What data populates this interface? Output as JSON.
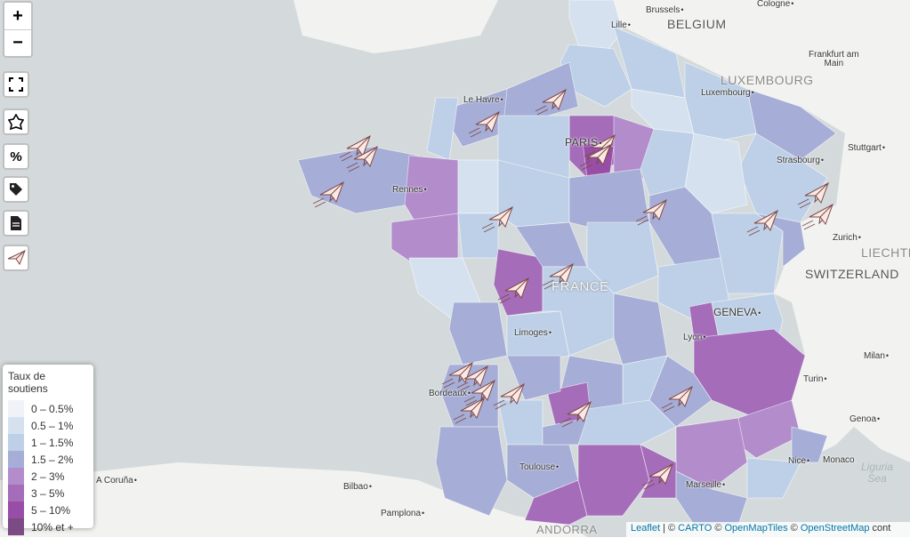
{
  "controls": {
    "zoom_in": "+",
    "zoom_out": "−",
    "percent": "%"
  },
  "legend": {
    "title": "Taux de soutiens",
    "items": [
      {
        "label": "0 – 0.5%",
        "color": "#eff3f8"
      },
      {
        "label": "0.5 – 1%",
        "color": "#d6e1ef"
      },
      {
        "label": "1 – 1.5%",
        "color": "#bdd0e7"
      },
      {
        "label": "1.5 – 2%",
        "color": "#a6add6"
      },
      {
        "label": "2 – 3%",
        "color": "#b28ccb"
      },
      {
        "label": "3 – 5%",
        "color": "#a46cb9"
      },
      {
        "label": "5 – 10%",
        "color": "#984ea6"
      },
      {
        "label": "10% et +",
        "color": "#7c4a85"
      }
    ]
  },
  "places": {
    "brussels": "Brussels",
    "cologne": "Cologne",
    "lille": "Lille",
    "frankfurt": "Frankfurt am\nMain",
    "luxembourg_city": "Luxembourg",
    "le_havre": "Le Havre",
    "paris": "PARIS",
    "stuttgart": "Stuttgart",
    "strasbourg": "Strasbourg",
    "rennes": "Rennes",
    "zurich": "Zurich",
    "geneva": "GENEVA",
    "limoges": "Limoges",
    "lyon": "Lyon",
    "milan": "Milan",
    "turin": "Turin",
    "bordeaux": "Bordeaux",
    "genoa": "Genoa",
    "toulouse": "Toulouse",
    "nice": "Nice",
    "monaco": "Monaco",
    "marseille": "Marseille",
    "a_coruna": "A Coruña",
    "bilbao": "Bilbao",
    "pamplona": "Pamplona"
  },
  "countries": {
    "belgium": "BELGIUM",
    "luxembourg": "LUXEMBOURG",
    "france": "FRANCE",
    "switzerland": "SWITZERLAND",
    "liechtenstein": "LIECHTE",
    "andorra": "ANDORRA",
    "ligurian_sea": "Liguria\nSea"
  },
  "attribution": {
    "leaflet": "Leaflet",
    "sep1": " | © ",
    "carto": "CARTO",
    "sep2": " © ",
    "openmaptiles": "OpenMapTiles",
    "sep3": " © ",
    "osm": "OpenStreetMap",
    "tail": " cont"
  },
  "colors": {
    "sea": "#d4dadc",
    "land": "#f2f2f0",
    "border": "#ffffff"
  },
  "icons": [
    "zoom-in-icon",
    "zoom-out-icon",
    "fullscreen-icon",
    "map-outline-icon",
    "percent-icon",
    "tag-icon",
    "document-icon",
    "paper-plane-icon"
  ]
}
